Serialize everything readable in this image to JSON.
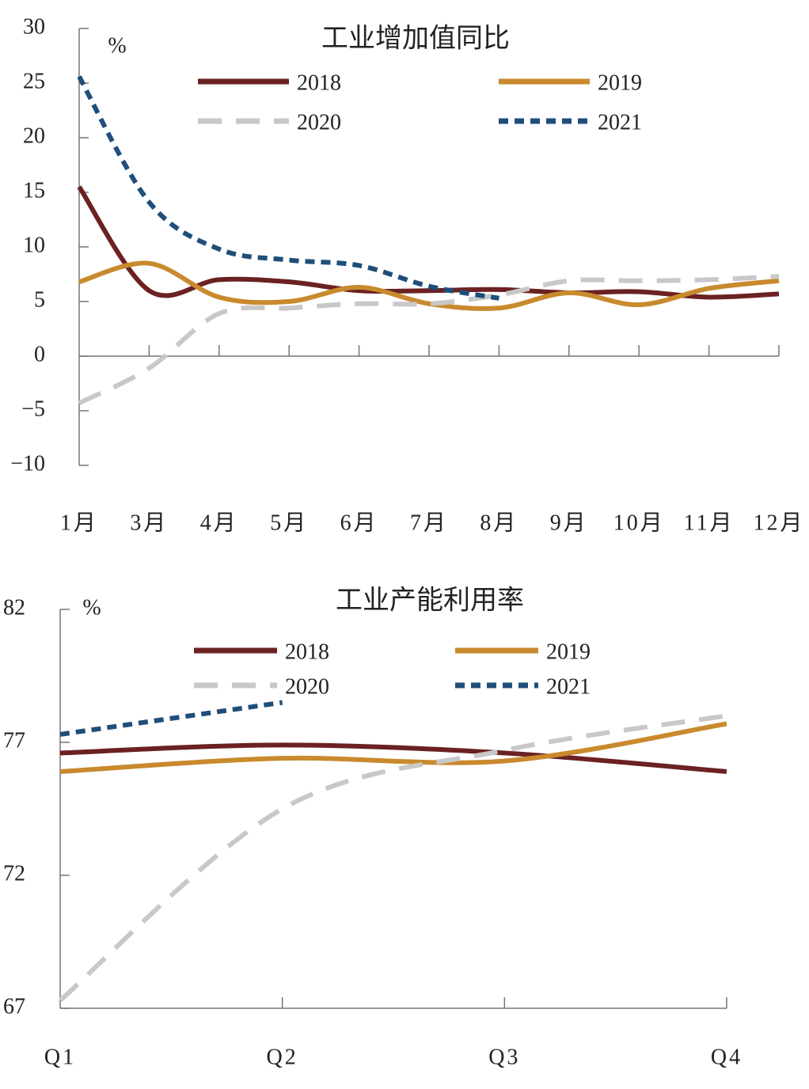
{
  "chart_data": [
    {
      "type": "line",
      "title": "工业增加值同比",
      "unit": "%",
      "categories": [
        "1月",
        "3月",
        "4月",
        "5月",
        "6月",
        "7月",
        "8月",
        "9月",
        "10月",
        "11月",
        "12月"
      ],
      "ylim": [
        -10,
        30
      ],
      "yticks": [
        {
          "value": -10,
          "label": "−10"
        },
        {
          "value": -5,
          "label": "−5"
        },
        0,
        5,
        10,
        15,
        20,
        25,
        30
      ],
      "grid": false,
      "series": [
        {
          "name": "2018",
          "color": "#6b2122",
          "style": "solid",
          "values": [
            15.5,
            6.0,
            7.0,
            6.8,
            6.0,
            6.0,
            6.1,
            5.8,
            5.9,
            5.4,
            5.7
          ]
        },
        {
          "name": "2019",
          "color": "#c98a2e",
          "style": "solid",
          "values": [
            6.8,
            8.5,
            5.4,
            5.0,
            6.3,
            4.8,
            4.4,
            5.8,
            4.7,
            6.2,
            6.9
          ]
        },
        {
          "name": "2020",
          "color": "#c8c8c8",
          "style": "dashed",
          "values": [
            -4.3,
            -1.1,
            3.9,
            4.4,
            4.8,
            4.8,
            5.6,
            6.9,
            6.9,
            7.0,
            7.3
          ]
        },
        {
          "name": "2021",
          "color": "#1f4e79",
          "style": "dotted",
          "values": [
            25.6,
            14.1,
            9.8,
            8.8,
            8.3,
            6.4,
            5.3,
            null,
            null,
            null,
            null
          ]
        }
      ]
    },
    {
      "type": "line",
      "title": "工业产能利用率",
      "unit": "%",
      "categories": [
        "Q1",
        "Q2",
        "Q3",
        "Q4"
      ],
      "ylim": [
        67,
        82
      ],
      "yticks": [
        67,
        72,
        77,
        82
      ],
      "grid": false,
      "series": [
        {
          "name": "2018",
          "color": "#6b2122",
          "style": "solid",
          "values": [
            76.6,
            76.9,
            76.6,
            75.9
          ]
        },
        {
          "name": "2019",
          "color": "#c98a2e",
          "style": "solid",
          "values": [
            75.9,
            76.4,
            76.3,
            77.7
          ]
        },
        {
          "name": "2020",
          "color": "#c8c8c8",
          "style": "dashed",
          "values": [
            67.3,
            74.5,
            76.7,
            78.0
          ]
        },
        {
          "name": "2021",
          "color": "#1f4e79",
          "style": "dotted",
          "values": [
            77.3,
            78.5,
            null,
            null
          ]
        }
      ]
    }
  ]
}
